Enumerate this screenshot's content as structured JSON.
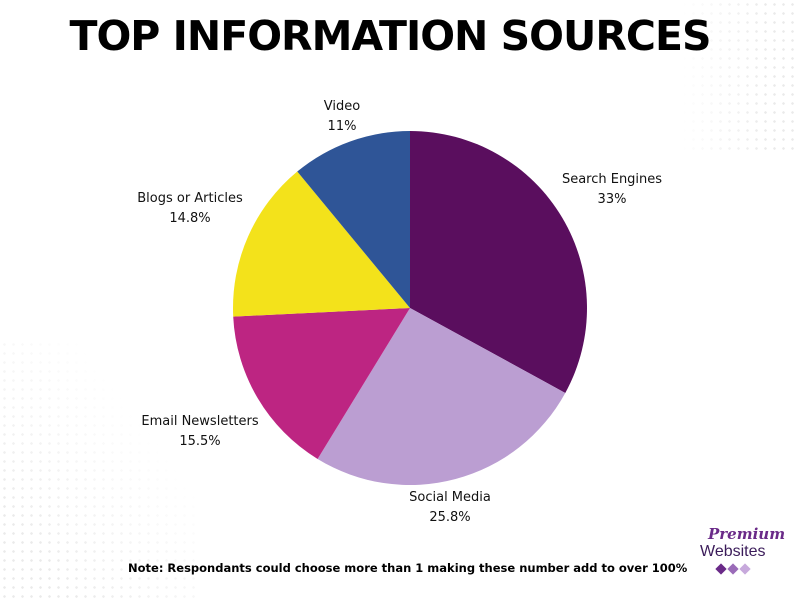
{
  "title": "TOP INFORMATION SOURCES",
  "note": "Note: Respondants could choose more than 1 making these number add to over 100%",
  "logo": {
    "line1": "Premium",
    "line2": "Websites"
  },
  "colors": {
    "search_engines": "#5a0e5e",
    "social_media": "#bb9ed2",
    "email_newsletters": "#bd2582",
    "blogs_or_articles": "#f3e21b",
    "video": "#2f5597",
    "logo_diamond_1": "#6a2a88",
    "logo_diamond_2": "#9a6bb8",
    "logo_diamond_3": "#c7a9dc"
  },
  "chart_data": {
    "type": "pie",
    "title": "TOP INFORMATION SOURCES",
    "slices": [
      {
        "label": "Search Engines",
        "value": 33,
        "value_label": "33%",
        "color": "#5a0e5e"
      },
      {
        "label": "Social Media",
        "value": 25.8,
        "value_label": "25.8%",
        "color": "#bb9ed2"
      },
      {
        "label": "Email Newsletters",
        "value": 15.5,
        "value_label": "15.5%",
        "color": "#bd2582"
      },
      {
        "label": "Blogs or Articles",
        "value": 14.8,
        "value_label": "14.8%",
        "color": "#f3e21b"
      },
      {
        "label": "Video",
        "value": 11,
        "value_label": "11%",
        "color": "#2f5597"
      }
    ],
    "start_angle": "top",
    "direction": "clockwise",
    "legend": "none"
  }
}
